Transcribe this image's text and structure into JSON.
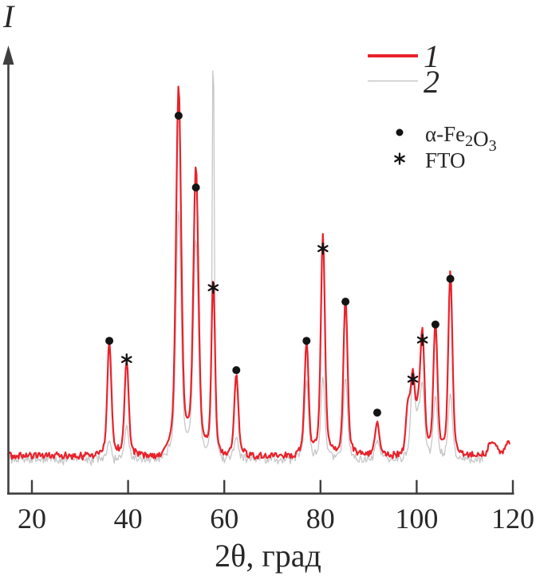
{
  "labels": {
    "y_axis": "I",
    "x_axis": "2θ, град"
  },
  "axis": {
    "x_ticks": [
      {
        "value": 20,
        "label": "20"
      },
      {
        "value": 40,
        "label": "40"
      },
      {
        "value": 60,
        "label": "60"
      },
      {
        "value": 80,
        "label": "80"
      },
      {
        "value": 100,
        "label": "100"
      },
      {
        "value": 120,
        "label": "120"
      }
    ],
    "x_range_deg": [
      15,
      120
    ],
    "axis_color": "#3f3f3f",
    "text_color": "#282828"
  },
  "legend": {
    "series": [
      {
        "label": "1",
        "color": "#e8222b"
      },
      {
        "label": "2",
        "color": "#c6c6c6"
      }
    ],
    "phases": [
      {
        "symbol": "dot",
        "plain": "α-Fe2O3",
        "label_parts": [
          {
            "t": "α-Fe"
          },
          {
            "t": "2",
            "sub": true
          },
          {
            "t": "O"
          },
          {
            "t": "3",
            "sub": true
          }
        ]
      },
      {
        "symbol": "asterisk",
        "label": "FTO"
      }
    ]
  },
  "chart_data": {
    "type": "line",
    "title": "",
    "xlabel": "2θ, град",
    "ylabel": "I",
    "x_range": [
      15,
      120
    ],
    "y_axis": "intensity, arbitrary units, no ticks",
    "grid": false,
    "legend_position": "top-right",
    "marker_legend": {
      "dot": "α-Fe2O3",
      "asterisk": "FTO"
    },
    "series": [
      {
        "name": "1",
        "description": "red XRD pattern, α-Fe2O3 film on FTO",
        "color": "#e8222b",
        "peaks": [
          {
            "two_theta": 36.1,
            "rel_intensity": 31,
            "phase": "α-Fe2O3"
          },
          {
            "two_theta": 39.7,
            "rel_intensity": 26,
            "phase": "FTO"
          },
          {
            "two_theta": 50.5,
            "rel_intensity": 100,
            "phase": "α-Fe2O3"
          },
          {
            "two_theta": 54.1,
            "rel_intensity": 78,
            "phase": "α-Fe2O3"
          },
          {
            "two_theta": 57.7,
            "rel_intensity": 48,
            "phase": "FTO"
          },
          {
            "two_theta": 62.5,
            "rel_intensity": 22,
            "phase": "α-Fe2O3"
          },
          {
            "two_theta": 77.1,
            "rel_intensity": 31,
            "phase": "α-Fe2O3"
          },
          {
            "two_theta": 80.5,
            "rel_intensity": 60,
            "phase": "FTO"
          },
          {
            "two_theta": 85.2,
            "rel_intensity": 43,
            "phase": "α-Fe2O3"
          },
          {
            "two_theta": 91.8,
            "rel_intensity": 9,
            "phase": "α-Fe2O3"
          },
          {
            "two_theta": 98.2,
            "rel_intensity": 13,
            "phase": null
          },
          {
            "two_theta": 99.2,
            "rel_intensity": 20,
            "phase": "FTO"
          },
          {
            "two_theta": 100.3,
            "rel_intensity": 10,
            "phase": null
          },
          {
            "two_theta": 101.2,
            "rel_intensity": 32,
            "phase": "FTO"
          },
          {
            "two_theta": 103.9,
            "rel_intensity": 36,
            "phase": "α-Fe2O3"
          },
          {
            "two_theta": 107.0,
            "rel_intensity": 50,
            "phase": "α-Fe2O3"
          },
          {
            "two_theta": 115.7,
            "rel_intensity": 3.5,
            "phase": null
          },
          {
            "two_theta": 119.1,
            "rel_intensity": 3.5,
            "phase": null
          }
        ]
      },
      {
        "name": "2",
        "description": "gray XRD pattern, FTO substrate reference",
        "color": "#c6c6c6",
        "peaks": [
          {
            "two_theta": 36.1,
            "rel_intensity": 5,
            "phase": "α-Fe2O3"
          },
          {
            "two_theta": 39.7,
            "rel_intensity": 9,
            "phase": "FTO"
          },
          {
            "two_theta": 50.5,
            "rel_intensity": 67,
            "phase": "α-Fe2O3"
          },
          {
            "two_theta": 54.1,
            "rel_intensity": 59,
            "phase": "α-Fe2O3"
          },
          {
            "two_theta": 57.7,
            "rel_intensity": 114,
            "phase": "FTO"
          },
          {
            "two_theta": 62.5,
            "rel_intensity": 6,
            "phase": "α-Fe2O3"
          },
          {
            "two_theta": 77.1,
            "rel_intensity": 21,
            "phase": "α-Fe2O3"
          },
          {
            "two_theta": 80.5,
            "rel_intensity": 22,
            "phase": "FTO"
          },
          {
            "two_theta": 85.2,
            "rel_intensity": 22,
            "phase": "α-Fe2O3"
          },
          {
            "two_theta": 91.8,
            "rel_intensity": 5,
            "phase": "α-Fe2O3"
          },
          {
            "two_theta": 99.2,
            "rel_intensity": 22,
            "phase": "FTO"
          },
          {
            "two_theta": 100.3,
            "rel_intensity": 9,
            "phase": null
          },
          {
            "two_theta": 101.2,
            "rel_intensity": 19,
            "phase": "FTO"
          },
          {
            "two_theta": 103.9,
            "rel_intensity": 17,
            "phase": "α-Fe2O3"
          },
          {
            "two_theta": 107.0,
            "rel_intensity": 18,
            "phase": "α-Fe2O3"
          }
        ]
      }
    ]
  }
}
